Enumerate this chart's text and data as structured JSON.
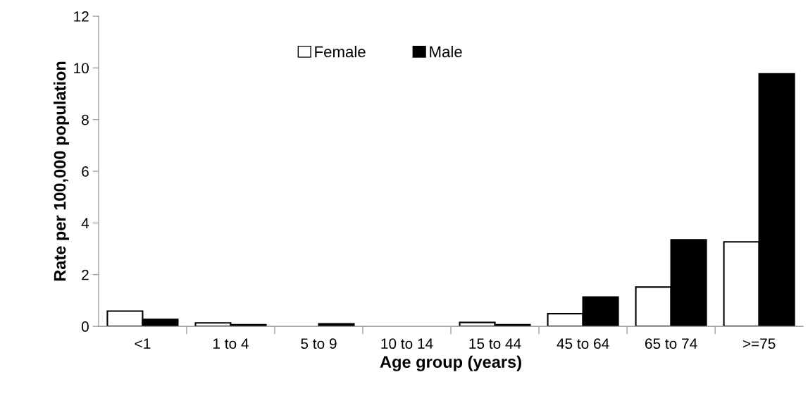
{
  "chart_data": {
    "type": "bar",
    "xlabel": "Age group (years)",
    "ylabel": "Rate per 100,000 population",
    "categories": [
      "<1",
      "1 to 4",
      "5 to 9",
      "10 to 14",
      "15 to 44",
      "45 to 64",
      "65 to 74",
      ">=75"
    ],
    "series": [
      {
        "name": "Female",
        "color": "#ffffff",
        "values": [
          0.59,
          0.13,
          null,
          null,
          0.15,
          0.49,
          1.52,
          3.27
        ]
      },
      {
        "name": "Male",
        "color": "#000000",
        "values": [
          0.27,
          0.06,
          0.1,
          null,
          0.06,
          1.13,
          3.35,
          9.77
        ]
      }
    ],
    "ylim": [
      0,
      12
    ],
    "yticks": [
      0,
      2,
      4,
      6,
      8,
      10,
      12
    ],
    "grid": false,
    "legend": "top"
  }
}
